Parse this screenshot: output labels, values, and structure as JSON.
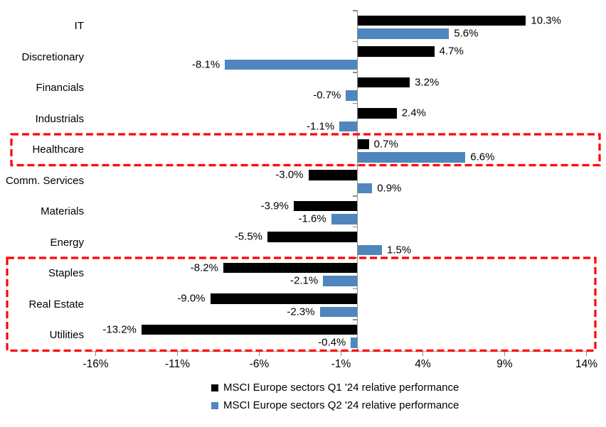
{
  "chart_data": {
    "type": "bar",
    "orientation": "horizontal",
    "title": "",
    "xlabel": "",
    "ylabel": "",
    "grid": false,
    "legend_position": "bottom",
    "categories": [
      "IT",
      "Discretionary",
      "Financials",
      "Industrials",
      "Healthcare",
      "Comm. Services",
      "Materials",
      "Energy",
      "Staples",
      "Real Estate",
      "Utilities"
    ],
    "series": [
      {
        "name": "MSCI Europe sectors Q1 '24 relative performance",
        "color": "#000000",
        "values": [
          10.3,
          4.7,
          3.2,
          2.4,
          0.7,
          -3.0,
          -3.9,
          -5.5,
          -8.2,
          -9.0,
          -13.2
        ],
        "labels": [
          "10.3%",
          "4.7%",
          "3.2%",
          "2.4%",
          "0.7%",
          "-3.0%",
          "-3.9%",
          "-5.5%",
          "-8.2%",
          "-9.0%",
          "-13.2%"
        ]
      },
      {
        "name": "MSCI Europe sectors Q2 '24 relative performance",
        "color": "#4F86BE",
        "values": [
          5.6,
          -8.1,
          -0.7,
          -1.1,
          6.6,
          0.9,
          -1.6,
          1.5,
          -2.1,
          -2.3,
          -0.4
        ],
        "labels": [
          "5.6%",
          "-8.1%",
          "-0.7%",
          "-1.1%",
          "6.6%",
          "0.9%",
          "-1.6%",
          "1.5%",
          "-2.1%",
          "-2.3%",
          "-0.4%"
        ]
      }
    ],
    "x_axis": {
      "range": [
        -16.5,
        14.5
      ],
      "ticks": [
        {
          "label": "-16%",
          "value": -16
        },
        {
          "label": "-11%",
          "value": -11
        },
        {
          "label": "-6%",
          "value": -6
        },
        {
          "label": "-1%",
          "value": -1
        },
        {
          "label": "4%",
          "value": 4
        },
        {
          "label": "9%",
          "value": 9
        },
        {
          "label": "14%",
          "value": 14
        }
      ]
    },
    "highlights": [
      {
        "categories": [
          "Healthcare"
        ],
        "color": "#FF0000"
      },
      {
        "categories": [
          "Staples",
          "Real Estate",
          "Utilities"
        ],
        "color": "#FF0000"
      }
    ]
  }
}
